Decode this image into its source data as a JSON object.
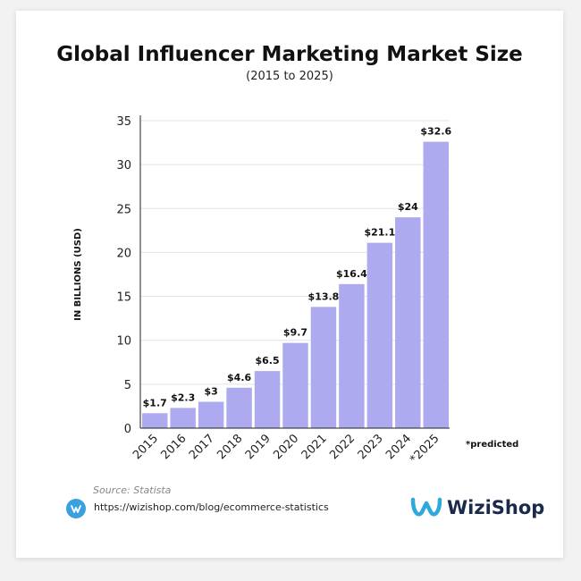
{
  "title": "Global Influencer Marketing Market Size",
  "subtitle": "(2015 to 2025)",
  "footnote": "*predicted",
  "source": "Source: Statista",
  "link": "https://wizishop.com/blog/ecommerce-statistics",
  "brand": "WiziShop",
  "colors": {
    "bar": "#adaaf0",
    "accent": "#3aa0e0",
    "brand_text": "#1a2a4a"
  },
  "chart_data": {
    "type": "bar",
    "title": "Global Influencer Marketing Market Size",
    "subtitle": "(2015 to 2025)",
    "xlabel": "",
    "ylabel": "IN BILLIONS (USD)",
    "categories": [
      "2015",
      "2016",
      "2017",
      "2018",
      "2019",
      "2020",
      "2021",
      "2022",
      "2023",
      "2024",
      "*2025"
    ],
    "values": [
      1.7,
      2.3,
      3,
      4.6,
      6.5,
      9.7,
      13.8,
      16.4,
      21.1,
      24,
      32.6
    ],
    "labels": [
      "$1.7",
      "$2.3",
      "$3",
      "$4.6",
      "$6.5",
      "$9.7",
      "$13.8",
      "$16.4",
      "$21.1",
      "$24",
      "$32.6"
    ],
    "ylim": [
      0,
      35
    ],
    "yticks": [
      0,
      5,
      10,
      15,
      20,
      25,
      30,
      35
    ],
    "grid": true,
    "legend": "none"
  }
}
